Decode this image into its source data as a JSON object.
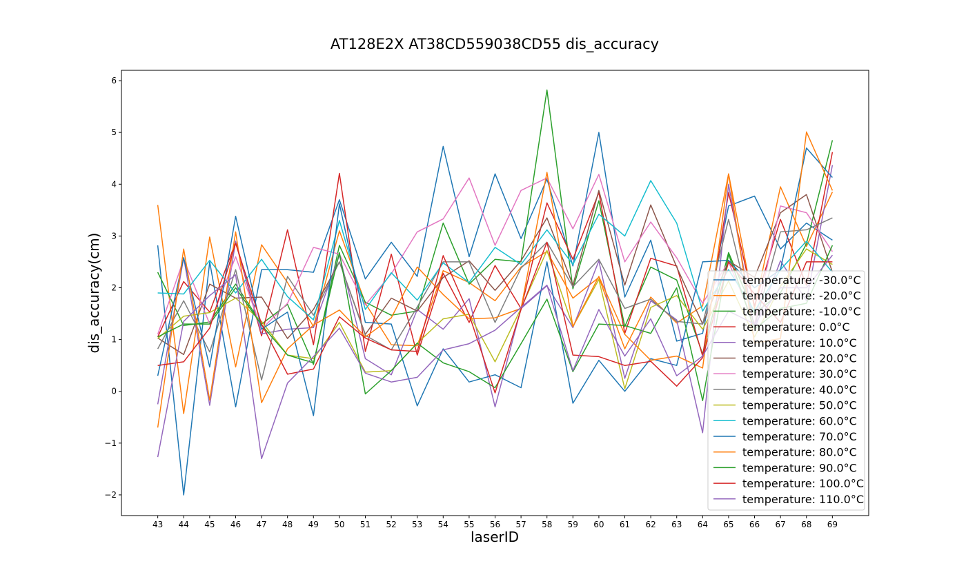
{
  "chart_data": {
    "type": "line",
    "title": "AT128E2X AT38CD559038CD55 dis_accuracy",
    "xlabel": "laserID",
    "ylabel": "dis_accuracy(cm)",
    "x": [
      43,
      44,
      45,
      46,
      47,
      48,
      49,
      50,
      51,
      52,
      53,
      54,
      55,
      56,
      57,
      58,
      59,
      60,
      61,
      62,
      63,
      64,
      65,
      66,
      67,
      68,
      69
    ],
    "xlim": [
      41.6,
      70.4
    ],
    "ylim": [
      -2.4,
      6.2
    ],
    "yticks": [
      -2,
      -1,
      0,
      1,
      2,
      3,
      4,
      5,
      6
    ],
    "ytick_labels": [
      "−2",
      "−1",
      "0",
      "1",
      "2",
      "3",
      "4",
      "5",
      "6"
    ],
    "grid": false,
    "legend_position": "lower-right",
    "series": [
      {
        "name": "temperature: -30.0°C",
        "color": "#1f77b4",
        "values": [
          2.82,
          -2.0,
          2.5,
          -0.3,
          2.35,
          2.35,
          2.3,
          3.7,
          2.17,
          2.88,
          2.22,
          4.73,
          2.6,
          4.2,
          2.95,
          4.1,
          2.42,
          5.0,
          1.82,
          2.92,
          0.97,
          1.12,
          3.58,
          3.77,
          2.75,
          3.25,
          2.92
        ]
      },
      {
        "name": "temperature: -20.0°C",
        "color": "#ff7f0e",
        "values": [
          3.6,
          -0.43,
          2.98,
          0.47,
          2.83,
          2.1,
          1.25,
          3.1,
          1.7,
          0.9,
          0.88,
          2.33,
          2.1,
          1.75,
          2.4,
          2.7,
          1.8,
          2.2,
          0.82,
          1.82,
          1.32,
          1.65,
          4.2,
          1.6,
          3.95,
          2.8,
          3.85
        ]
      },
      {
        "name": "temperature: -10.0°C",
        "color": "#2ca02c",
        "values": [
          2.3,
          1.27,
          1.34,
          2.07,
          1.3,
          1.68,
          0.52,
          2.82,
          1.72,
          1.47,
          1.55,
          3.25,
          2.07,
          2.55,
          2.5,
          5.82,
          1.98,
          3.68,
          1.25,
          2.4,
          2.15,
          0.72,
          2.68,
          1.5,
          1.9,
          2.85,
          4.85
        ]
      },
      {
        "name": "temperature: 0.0°C",
        "color": "#d62728",
        "values": [
          1.05,
          2.12,
          1.53,
          2.88,
          1.07,
          3.12,
          0.9,
          4.21,
          0.77,
          2.65,
          0.7,
          2.28,
          1.33,
          2.43,
          1.6,
          3.64,
          2.55,
          3.84,
          1.12,
          2.57,
          2.42,
          0.68,
          3.84,
          1.65,
          3.32,
          2.05,
          4.62
        ]
      },
      {
        "name": "temperature: 10.0°C",
        "color": "#9467bd",
        "values": [
          -0.25,
          2.58,
          -0.27,
          2.9,
          1.11,
          1.2,
          1.23,
          2.63,
          0.63,
          0.32,
          1.58,
          1.2,
          1.79,
          -0.3,
          1.6,
          2.04,
          1.23,
          2.52,
          0.25,
          1.75,
          1.38,
          -0.8,
          4.0,
          1.2,
          2.52,
          1.75,
          4.37
        ]
      },
      {
        "name": "temperature: 20.0°C",
        "color": "#8c564b",
        "values": [
          1.03,
          0.71,
          2.07,
          1.8,
          1.82,
          1.02,
          1.58,
          2.5,
          1.1,
          1.8,
          1.55,
          2.2,
          2.52,
          1.95,
          2.52,
          3.35,
          2.05,
          3.88,
          2.05,
          3.6,
          2.4,
          1.3,
          2.52,
          2.2,
          3.45,
          3.8,
          2.3
        ]
      },
      {
        "name": "temperature: 30.0°C",
        "color": "#e377c2",
        "values": [
          1.1,
          2.55,
          1.3,
          2.6,
          1.2,
          1.7,
          2.78,
          2.65,
          1.67,
          2.27,
          3.08,
          3.33,
          4.12,
          2.82,
          3.88,
          4.12,
          3.14,
          4.19,
          2.5,
          3.27,
          2.58,
          1.7,
          2.5,
          1.3,
          3.58,
          3.45,
          2.7
        ]
      },
      {
        "name": "temperature: 40.0°C",
        "color": "#7f7f7f",
        "values": [
          0.82,
          1.75,
          0.76,
          2.35,
          0.22,
          2.22,
          1.47,
          2.5,
          1.08,
          0.8,
          1.63,
          2.5,
          2.5,
          1.33,
          2.38,
          2.88,
          2.02,
          2.55,
          1.6,
          1.78,
          1.35,
          1.3,
          3.32,
          1.25,
          3.08,
          3.12,
          3.35
        ]
      },
      {
        "name": "temperature: 50.0°C",
        "color": "#bcbd22",
        "values": [
          1.02,
          1.45,
          1.52,
          1.8,
          1.35,
          0.7,
          0.63,
          1.33,
          0.37,
          0.4,
          0.93,
          1.4,
          1.49,
          0.57,
          1.6,
          2.72,
          1.25,
          2.16,
          0.05,
          1.62,
          1.85,
          1.2,
          2.13,
          1.05,
          2.03,
          2.75,
          2.45
        ]
      },
      {
        "name": "temperature: 60.0°C",
        "color": "#17becf",
        "values": [
          1.9,
          1.88,
          2.53,
          1.9,
          2.55,
          1.83,
          1.38,
          3.3,
          1.58,
          2.29,
          1.76,
          2.48,
          2.1,
          2.78,
          2.45,
          3.12,
          2.45,
          3.42,
          3.0,
          4.07,
          3.25,
          1.55,
          2.35,
          1.55,
          2.35,
          2.9,
          2.3
        ]
      },
      {
        "name": "temperature: 70.0°C",
        "color": "#1f77b4",
        "values": [
          0.3,
          2.58,
          0.47,
          3.38,
          1.2,
          1.53,
          -0.47,
          3.62,
          1.33,
          1.3,
          -0.28,
          0.82,
          0.18,
          0.32,
          0.07,
          2.5,
          -0.23,
          0.6,
          0.0,
          0.63,
          0.5,
          2.5,
          2.53,
          2.0,
          2.35,
          4.7,
          4.13
        ]
      },
      {
        "name": "temperature: 80.0°C",
        "color": "#ff7f0e",
        "values": [
          -0.7,
          2.75,
          -0.17,
          3.08,
          -0.22,
          0.82,
          1.28,
          1.57,
          1.05,
          1.42,
          2.4,
          1.87,
          1.4,
          1.42,
          1.6,
          4.23,
          1.25,
          2.22,
          1.1,
          0.6,
          0.68,
          0.45,
          4.2,
          0.93,
          1.02,
          5.01,
          3.88
        ]
      },
      {
        "name": "temperature: 90.0°C",
        "color": "#2ca02c",
        "values": [
          1.05,
          1.3,
          1.3,
          2.0,
          1.28,
          0.7,
          0.55,
          2.68,
          -0.05,
          0.4,
          0.93,
          0.55,
          0.38,
          0.07,
          0.92,
          1.78,
          0.38,
          1.3,
          1.27,
          1.12,
          2.0,
          -0.18,
          2.65,
          1.2,
          1.6,
          1.7,
          2.82
        ]
      },
      {
        "name": "temperature: 100.0°C",
        "color": "#d62728",
        "values": [
          0.5,
          0.57,
          1.22,
          2.86,
          1.3,
          0.33,
          0.43,
          1.44,
          1.03,
          0.8,
          0.77,
          2.62,
          1.48,
          -0.03,
          1.58,
          2.88,
          0.7,
          0.67,
          0.5,
          0.58,
          0.1,
          0.65,
          2.5,
          1.88,
          1.33,
          2.5,
          2.5
        ]
      },
      {
        "name": "temperature: 110.0°C",
        "color": "#9467bd",
        "values": [
          -1.27,
          1.35,
          1.85,
          2.25,
          -1.3,
          0.16,
          0.67,
          1.22,
          0.35,
          0.18,
          0.27,
          0.8,
          0.92,
          1.18,
          1.62,
          2.05,
          0.4,
          1.58,
          0.68,
          1.4,
          0.3,
          0.68,
          1.55,
          1.3,
          2.0,
          2.0,
          2.63
        ]
      }
    ]
  }
}
